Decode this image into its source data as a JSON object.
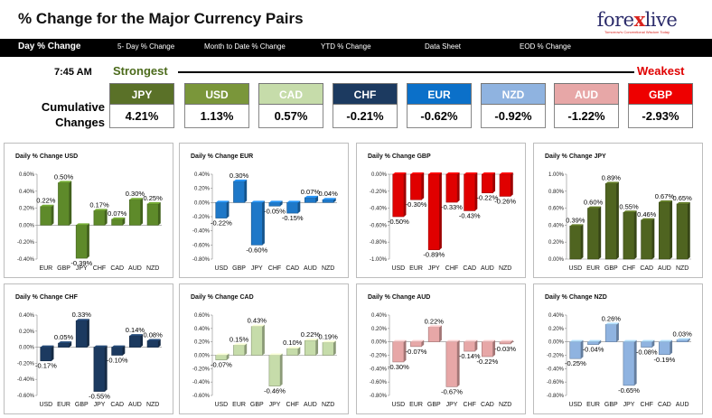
{
  "header": {
    "title": "% Change for the Major Currency Pairs",
    "logo_text": "forexlive",
    "logo_tagline": "Tomorrow's Conventional Wisdom Today"
  },
  "nav": {
    "items": [
      "Day % Change",
      "5- Day % Change",
      "Month to Date % Change",
      "YTD % Change",
      "Data Sheet",
      "EOD % Change"
    ]
  },
  "summary": {
    "time": "7:45 AM",
    "strongest_label": "Strongest",
    "weakest_label": "Weakest",
    "row_label_line1": "Cumulative",
    "row_label_line2": "Changes",
    "currencies": [
      {
        "code": "JPY",
        "value": "4.21%",
        "color": "#5a7128"
      },
      {
        "code": "USD",
        "value": "1.13%",
        "color": "#7a963a"
      },
      {
        "code": "CAD",
        "value": "0.57%",
        "color": "#c6dcaa"
      },
      {
        "code": "CHF",
        "value": "-0.21%",
        "color": "#1c3a60"
      },
      {
        "code": "EUR",
        "value": "-0.62%",
        "color": "#0b70c9"
      },
      {
        "code": "NZD",
        "value": "-0.92%",
        "color": "#8fb3e0"
      },
      {
        "code": "AUD",
        "value": "-1.22%",
        "color": "#e7a7a7"
      },
      {
        "code": "GBP",
        "value": "-2.93%",
        "color": "#ee0000"
      }
    ]
  },
  "chart_data": [
    {
      "type": "bar",
      "title": "Daily % Change USD",
      "categories": [
        "EUR",
        "GBP",
        "JPY",
        "CHF",
        "CAD",
        "AUD",
        "NZD"
      ],
      "values": [
        0.22,
        0.5,
        -0.39,
        0.17,
        0.07,
        0.3,
        0.25
      ],
      "value_labels": [
        "0.22%",
        "0.50%",
        "-0.39%",
        "0.17%",
        "0.07%",
        "0.30%",
        "0.25%"
      ],
      "ylim": [
        -0.4,
        0.6
      ],
      "yticks": [
        "0.60%",
        "0.40%",
        "0.20%",
        "0.00%",
        "-0.20%",
        "-0.40%"
      ],
      "color": "#5e8a2a"
    },
    {
      "type": "bar",
      "title": "Daily % Change EUR",
      "categories": [
        "USD",
        "GBP",
        "JPY",
        "CHF",
        "CAD",
        "AUD",
        "NZD"
      ],
      "values": [
        -0.22,
        0.3,
        -0.6,
        -0.05,
        -0.15,
        0.07,
        0.04
      ],
      "value_labels": [
        "-0.22%",
        "0.30%",
        "-0.60%",
        "-0.05%",
        "-0.15%",
        "0.07%",
        "0.04%"
      ],
      "ylim": [
        -0.8,
        0.4
      ],
      "yticks": [
        "0.40%",
        "0.20%",
        "0.00%",
        "-0.20%",
        "-0.40%",
        "-0.60%",
        "-0.80%"
      ],
      "color": "#1e78c8"
    },
    {
      "type": "bar",
      "title": "Daily % Change GBP",
      "categories": [
        "USD",
        "EUR",
        "JPY",
        "CHF",
        "CAD",
        "AUD",
        "NZD"
      ],
      "values": [
        -0.5,
        -0.3,
        -0.89,
        -0.33,
        -0.43,
        -0.22,
        -0.26
      ],
      "value_labels": [
        "-0.50%",
        "-0.30%",
        "-0.89%",
        "-0.33%",
        "-0.43%",
        "-0.22%",
        "-0.26%"
      ],
      "ylim": [
        -1.0,
        0.0
      ],
      "yticks": [
        "0.00%",
        "-0.20%",
        "-0.40%",
        "-0.60%",
        "-0.80%",
        "-1.00%"
      ],
      "color": "#e00000"
    },
    {
      "type": "bar",
      "title": "Daily % Change JPY",
      "categories": [
        "USD",
        "EUR",
        "GBP",
        "CHF",
        "CAD",
        "AUD",
        "NZD"
      ],
      "values": [
        0.39,
        0.6,
        0.89,
        0.55,
        0.46,
        0.67,
        0.65
      ],
      "value_labels": [
        "0.39%",
        "0.60%",
        "0.89%",
        "0.55%",
        "0.46%",
        "0.67%",
        "0.65%"
      ],
      "ylim": [
        0,
        1.0
      ],
      "yticks": [
        "1.00%",
        "0.80%",
        "0.60%",
        "0.40%",
        "0.20%",
        "0.00%"
      ],
      "color": "#4f6420"
    },
    {
      "type": "bar",
      "title": "Daily % Change CHF",
      "categories": [
        "USD",
        "EUR",
        "GBP",
        "JPY",
        "CAD",
        "AUD",
        "NZD"
      ],
      "values": [
        -0.17,
        0.05,
        0.33,
        -0.55,
        -0.1,
        0.14,
        0.08
      ],
      "value_labels": [
        "-0.17%",
        "0.05%",
        "0.33%",
        "-0.55%",
        "-0.10%",
        "0.14%",
        "0.08%"
      ],
      "ylim": [
        -0.6,
        0.4
      ],
      "yticks": [
        "0.40%",
        "0.20%",
        "0.00%",
        "-0.20%",
        "-0.40%",
        "-0.60%"
      ],
      "color": "#1c3a60"
    },
    {
      "type": "bar",
      "title": "Daily % Change CAD",
      "categories": [
        "USD",
        "EUR",
        "GBP",
        "JPY",
        "CHF",
        "AUD",
        "NZD"
      ],
      "values": [
        -0.07,
        0.15,
        0.43,
        -0.46,
        0.1,
        0.22,
        0.19
      ],
      "value_labels": [
        "-0.07%",
        "0.15%",
        "0.43%",
        "-0.46%",
        "0.10%",
        "0.22%",
        "0.19%"
      ],
      "ylim": [
        -0.6,
        0.6
      ],
      "yticks": [
        "0.60%",
        "0.40%",
        "0.20%",
        "0.00%",
        "-0.20%",
        "-0.40%",
        "-0.60%"
      ],
      "color": "#c6dcaa"
    },
    {
      "type": "bar",
      "title": "Daily % Change AUD",
      "categories": [
        "USD",
        "EUR",
        "GBP",
        "JPY",
        "CHF",
        "CAD",
        "NZD"
      ],
      "values": [
        -0.3,
        -0.07,
        0.22,
        -0.67,
        -0.14,
        -0.22,
        -0.03
      ],
      "value_labels": [
        "-0.30%",
        "-0.07%",
        "0.22%",
        "-0.67%",
        "-0.14%",
        "-0.22%",
        "-0.03%"
      ],
      "ylim": [
        -0.8,
        0.4
      ],
      "yticks": [
        "0.40%",
        "0.20%",
        "0.00%",
        "-0.20%",
        "-0.40%",
        "-0.60%",
        "-0.80%"
      ],
      "color": "#e7a7a7"
    },
    {
      "type": "bar",
      "title": "Daily % Change NZD",
      "categories": [
        "USD",
        "EUR",
        "GBP",
        "JPY",
        "CHF",
        "CAD",
        "AUD"
      ],
      "values": [
        -0.25,
        -0.04,
        0.26,
        -0.65,
        -0.08,
        -0.19,
        0.03
      ],
      "value_labels": [
        "-0.25%",
        "-0.04%",
        "0.26%",
        "-0.65%",
        "-0.08%",
        "-0.19%",
        "0.03%"
      ],
      "ylim": [
        -0.8,
        0.4
      ],
      "yticks": [
        "0.40%",
        "0.20%",
        "0.00%",
        "-0.20%",
        "-0.40%",
        "-0.60%",
        "-0.80%"
      ],
      "color": "#8fb3e0"
    }
  ]
}
